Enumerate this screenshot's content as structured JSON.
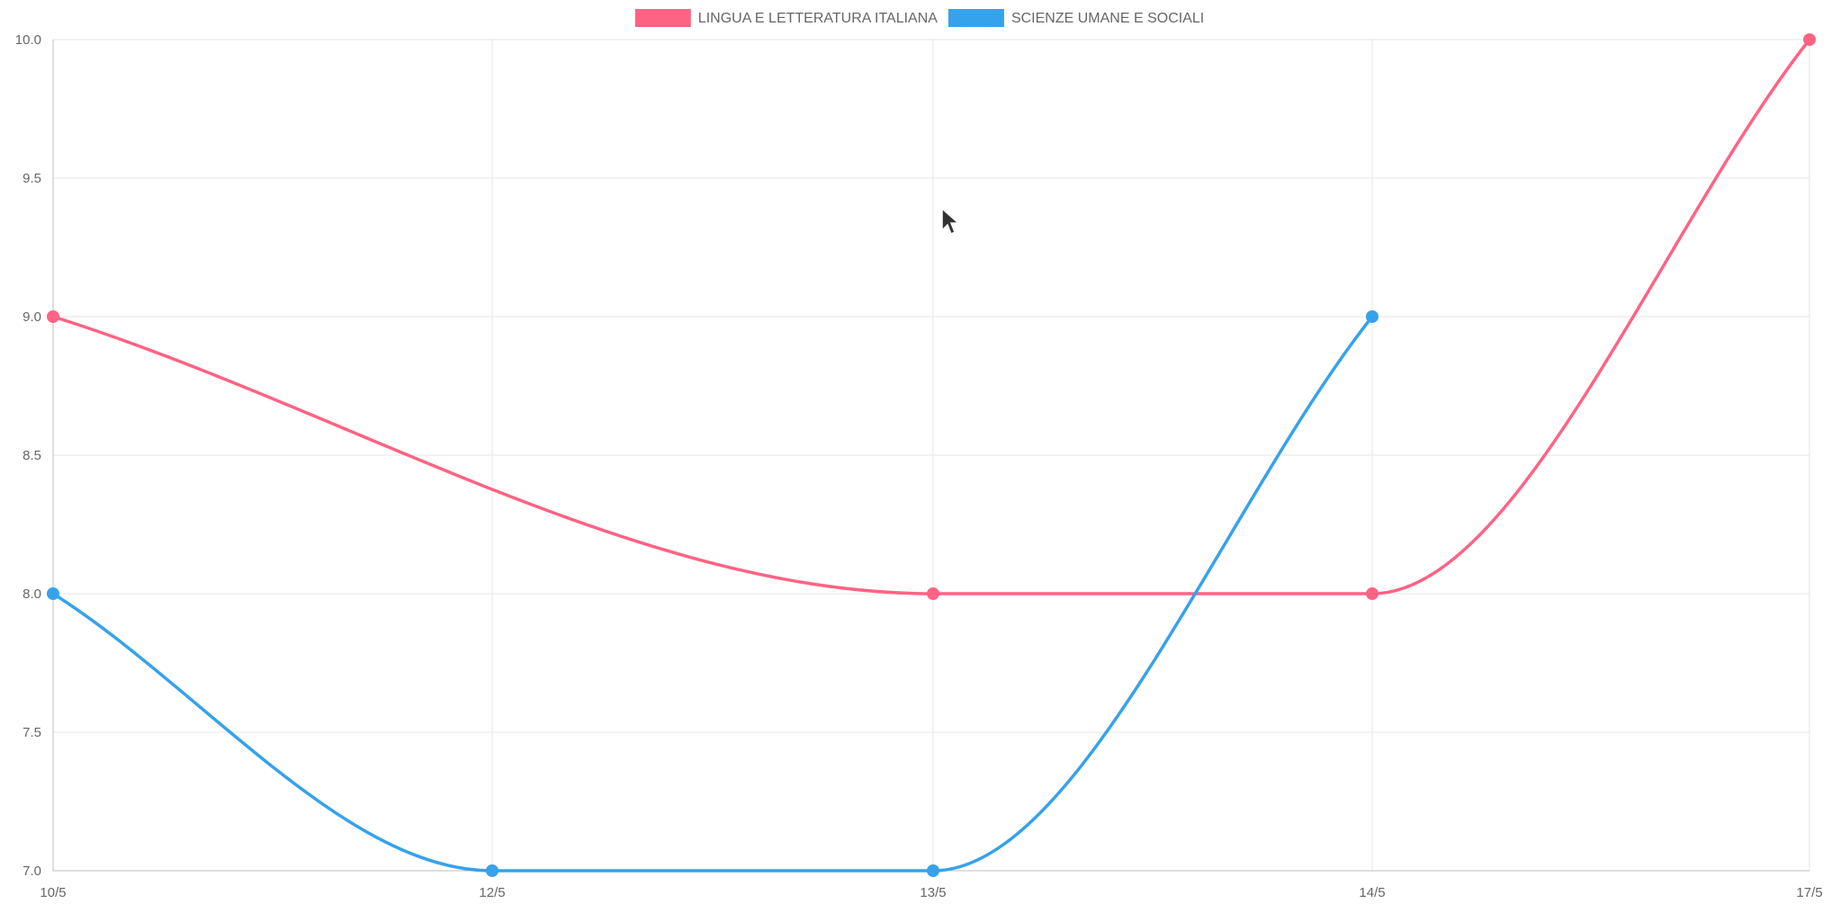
{
  "chart_data": {
    "type": "line",
    "title": "",
    "xlabel": "",
    "ylabel": "",
    "categories": [
      "10/5",
      "12/5",
      "13/5",
      "14/5",
      "17/5"
    ],
    "ylim": [
      7.0,
      10.0
    ],
    "yticks": [
      "10.0",
      "9.5",
      "9.0",
      "8.5",
      "8.0",
      "7.5",
      "7.0"
    ],
    "grid": true,
    "legend_position": "top-center",
    "smooth": true,
    "series": [
      {
        "name": "LINGUA E LETTERATURA ITALIANA",
        "color": "#ff6384",
        "values": [
          9,
          null,
          8,
          8,
          10
        ]
      },
      {
        "name": "SCIENZE UMANE E SOCIALI",
        "color": "#36a2eb",
        "values": [
          8,
          7,
          7,
          9,
          null
        ]
      }
    ]
  },
  "cursor": {
    "icon": "mouse-pointer-icon"
  }
}
